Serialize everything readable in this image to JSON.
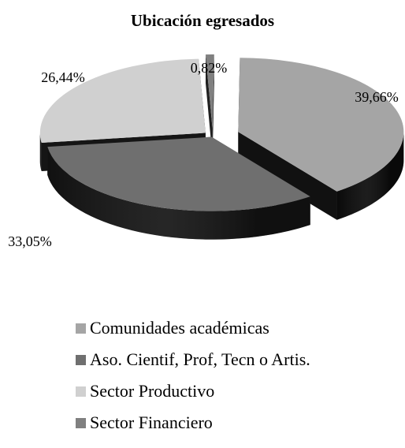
{
  "chart_data": {
    "type": "pie",
    "title": "Ubicación egresados",
    "categories": [
      "Comunidades académicas",
      "Aso. Cientif, Prof, Tecn o Artis.",
      "Sector Productivo",
      "Sector Financiero"
    ],
    "values": [
      39.66,
      33.05,
      26.44,
      0.82
    ],
    "labels": [
      "39,66%",
      "33,05%",
      "26,44%",
      "0,82%"
    ],
    "colors": [
      "#a5a5a5",
      "#6f6f6f",
      "#d0d0d0",
      "#808080"
    ],
    "side_colors": [
      "#111111",
      "#1e1e1e",
      "#151515",
      "#202020"
    ],
    "legend_position": "bottom",
    "style": "3d-exploded"
  }
}
